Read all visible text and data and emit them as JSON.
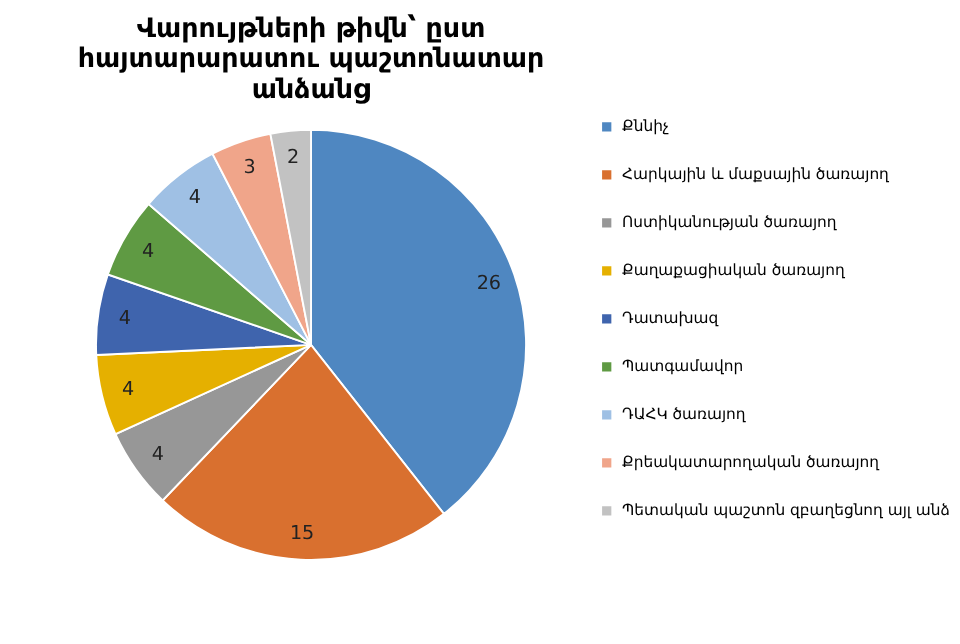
{
  "chart_data": {
    "type": "pie",
    "title": "Վարույթների թիվն՝ ըստ հայտարարատու պաշտոնատար անձանց",
    "categories": [
      "Քննիչ",
      "Հարկային և մաքսային ծառայող",
      "Ոստիկանության ծառայող",
      "Քաղաքացիական ծառայող",
      "Դատախազ",
      "Պատգամավոր",
      "ԴԱՀԿ ծառայող",
      "Քրեակատարողական ծառայող",
      "Պետական պաշտոն զբաղեցնող այլ անձ"
    ],
    "values": [
      26,
      15,
      4,
      4,
      4,
      4,
      4,
      3,
      2
    ],
    "colors": [
      "#4f87c1",
      "#d9702f",
      "#979797",
      "#e5b000",
      "#3f64ad",
      "#5f9a43",
      "#9fc0e4",
      "#f0a58a",
      "#c2c2c2"
    ],
    "data_labels": true,
    "legend": "right"
  }
}
